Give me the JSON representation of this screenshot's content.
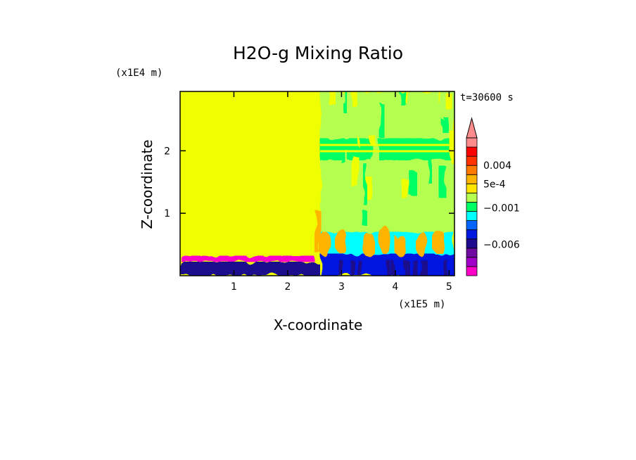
{
  "chart_data": {
    "type": "heatmap",
    "title": "H2O-g Mixing Ratio",
    "xlabel": "X-coordinate",
    "ylabel": "Z-coordinate",
    "x_unit_label": "(x1E5 m)",
    "y_unit_label": "(x1E4 m)",
    "time_label": "t=30600 s",
    "x_ticks": [
      1,
      2,
      3,
      4,
      5
    ],
    "y_ticks": [
      1,
      2
    ],
    "xlim": [
      0,
      5.1
    ],
    "ylim": [
      0,
      2.95
    ],
    "grid": false,
    "colorbar": {
      "placement": "right",
      "labels": [
        {
          "text": "0.004",
          "level": 0.004
        },
        {
          "text": "5e-4",
          "level": 0.0005
        },
        {
          "text": "−0.001",
          "level": -0.001
        },
        {
          "text": "−0.006",
          "level": -0.006
        }
      ],
      "colors": [
        "#ff00c8",
        "#a000c8",
        "#6e0aa0",
        "#1e0a8c",
        "#0018e0",
        "#0064ff",
        "#00ffff",
        "#00ff64",
        "#b4ff50",
        "#ffe600",
        "#ffb400",
        "#ff7800",
        "#ff3200",
        "#ff0000",
        "#ff8c8c"
      ]
    },
    "regions": [
      {
        "name": "background",
        "x": [
          0,
          5.1
        ],
        "z": [
          0,
          2.95
        ],
        "color": "#f0ff00"
      },
      {
        "name": "right-upper-green",
        "x": [
          2.6,
          5.1
        ],
        "z": [
          0.3,
          2.95
        ],
        "color": "#b4ff50"
      },
      {
        "name": "right-band-green",
        "x": [
          2.6,
          5.1
        ],
        "z": [
          1.85,
          2.2
        ],
        "color": "#00ff64"
      },
      {
        "name": "right-cyan",
        "x": [
          2.6,
          5.1
        ],
        "z": [
          0.2,
          0.7
        ],
        "color": "#00ffff"
      },
      {
        "name": "right-blue",
        "x": [
          2.6,
          5.1
        ],
        "z": [
          0.0,
          0.35
        ],
        "color": "#0018e0"
      },
      {
        "name": "left-surface-magenta",
        "x": [
          0,
          2.5
        ],
        "z": [
          0.22,
          0.32
        ],
        "color": "#ff00c8"
      },
      {
        "name": "left-surface-navy",
        "x": [
          0,
          2.6
        ],
        "z": [
          0.0,
          0.22
        ],
        "color": "#1e0a8c"
      }
    ],
    "plumes_orange": [
      {
        "x": 2.7,
        "z": [
          0.3,
          0.7
        ]
      },
      {
        "x": 3.0,
        "z": [
          0.35,
          0.75
        ]
      },
      {
        "x": 3.5,
        "z": [
          0.3,
          0.7
        ]
      },
      {
        "x": 3.8,
        "z": [
          0.35,
          0.8
        ]
      },
      {
        "x": 4.1,
        "z": [
          0.3,
          0.65
        ]
      },
      {
        "x": 4.5,
        "z": [
          0.3,
          0.7
        ]
      },
      {
        "x": 4.8,
        "z": [
          0.35,
          0.75
        ]
      }
    ]
  }
}
